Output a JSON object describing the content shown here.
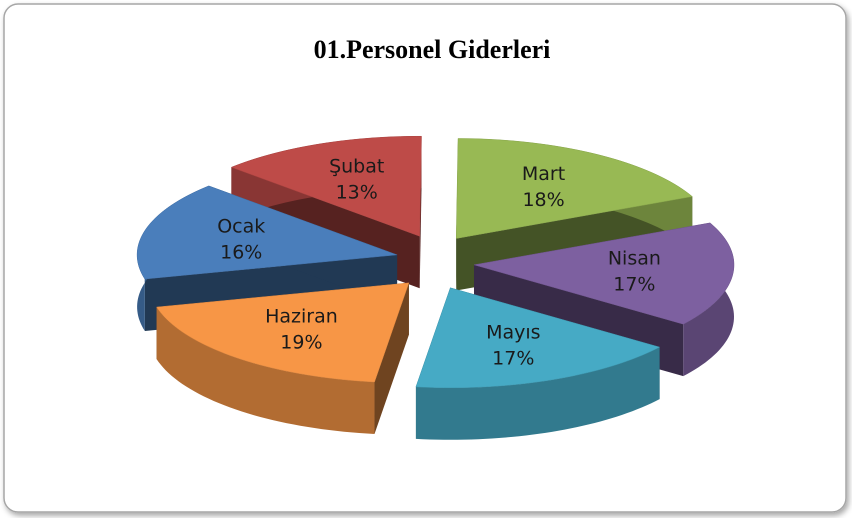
{
  "chart_data": {
    "type": "pie",
    "title": "01.Personel Giderleri",
    "categories": [
      "Ocak",
      "Şubat",
      "Mart",
      "Nisan",
      "Mayıs",
      "Haziran"
    ],
    "values": [
      16,
      13,
      18,
      17,
      17,
      19
    ],
    "value_labels": [
      "16%",
      "13%",
      "18%",
      "17%",
      "17%",
      "19%"
    ],
    "colors": [
      "#4a7ebb",
      "#be4b48",
      "#98b954",
      "#7d60a0",
      "#46aac5",
      "#f79646"
    ]
  }
}
